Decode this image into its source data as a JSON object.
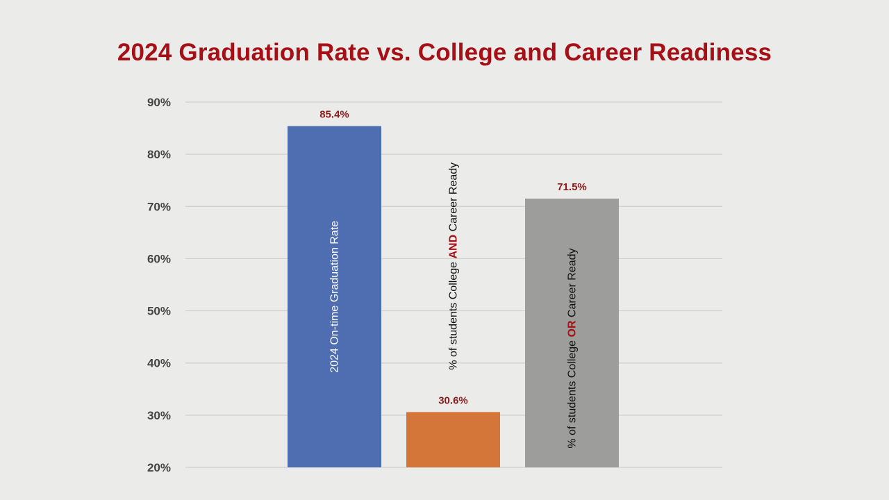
{
  "colors": {
    "title": "#a50f15",
    "grid": "#cfcfcf",
    "axis_text": "#444444",
    "data_label": "#8b1a1a"
  },
  "chart_data": {
    "type": "bar",
    "title": "2024 Graduation Rate vs. College and Career Readiness",
    "xlabel": "",
    "ylabel": "",
    "ylim": [
      20,
      90
    ],
    "yticks": [
      "20%",
      "30%",
      "40%",
      "50%",
      "60%",
      "70%",
      "80%",
      "90%"
    ],
    "yticks_values": [
      20,
      30,
      40,
      50,
      60,
      70,
      80,
      90
    ],
    "grid": true,
    "legend": "none",
    "bars": [
      {
        "value": 85.4,
        "value_label": "85.4%",
        "color": "#4f6eb2",
        "label_parts": [
          {
            "text": "2024 On-time Graduation Rate",
            "emph": false
          }
        ],
        "label_color": "#ffffff",
        "label_position": "inside"
      },
      {
        "value": 30.6,
        "value_label": "30.6%",
        "color": "#d4763a",
        "label_parts": [
          {
            "text": "% of students College ",
            "emph": false
          },
          {
            "text": "AND",
            "emph": true
          },
          {
            "text": " Career Ready",
            "emph": false
          }
        ],
        "label_color": "#111111",
        "label_position": "above"
      },
      {
        "value": 71.5,
        "value_label": "71.5%",
        "color": "#9d9e9b",
        "label_parts": [
          {
            "text": "% of students College ",
            "emph": false
          },
          {
            "text": "OR",
            "emph": true
          },
          {
            "text": " Career Ready",
            "emph": false
          }
        ],
        "label_color": "#111111",
        "label_position": "inside"
      }
    ]
  }
}
